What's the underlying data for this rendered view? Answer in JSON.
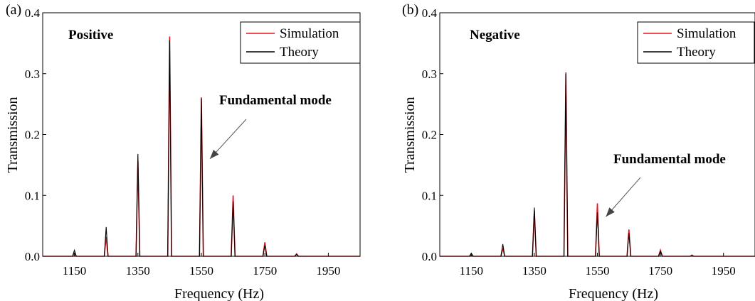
{
  "chart_data": [
    {
      "type": "line",
      "panel_label": "(a)",
      "annotation_title": "Positive",
      "annotation_text": "Fundamental mode",
      "annotation_target": {
        "x": 1550,
        "y": 0.16
      },
      "xlabel": "Frequency (Hz)",
      "ylabel": "Transmission",
      "xlim": [
        1050,
        2050
      ],
      "ylim": [
        0,
        0.4
      ],
      "xticks": [
        1150,
        1350,
        1550,
        1750,
        1950
      ],
      "xtick_labels": [
        "1150",
        "1350",
        "1550",
        "1750",
        "1950"
      ],
      "yticks": [
        0,
        0.1,
        0.2,
        0.3,
        0.4
      ],
      "ytick_labels": [
        "0.0",
        "0.1",
        "0.2",
        "0.3",
        "0.4"
      ],
      "legend": {
        "placement": "top-right",
        "entries": [
          "Simulation",
          "Theory"
        ]
      },
      "peak_halfwidth_hz": 6,
      "series": [
        {
          "name": "Simulation",
          "color": "#e8141b",
          "peaks": [
            {
              "x": 1150,
              "y": 0.005
            },
            {
              "x": 1250,
              "y": 0.032
            },
            {
              "x": 1350,
              "y": 0.157
            },
            {
              "x": 1450,
              "y": 0.361
            },
            {
              "x": 1550,
              "y": 0.261
            },
            {
              "x": 1650,
              "y": 0.1
            },
            {
              "x": 1750,
              "y": 0.023
            },
            {
              "x": 1850,
              "y": 0.004
            }
          ]
        },
        {
          "name": "Theory",
          "color": "#000000",
          "peaks": [
            {
              "x": 1150,
              "y": 0.01
            },
            {
              "x": 1250,
              "y": 0.048
            },
            {
              "x": 1350,
              "y": 0.168
            },
            {
              "x": 1450,
              "y": 0.355
            },
            {
              "x": 1550,
              "y": 0.259
            },
            {
              "x": 1650,
              "y": 0.09
            },
            {
              "x": 1750,
              "y": 0.018
            },
            {
              "x": 1850,
              "y": 0.003
            }
          ]
        }
      ]
    },
    {
      "type": "line",
      "panel_label": "(b)",
      "annotation_title": "Negative",
      "annotation_text": "Fundamental mode",
      "annotation_target": {
        "x": 1550,
        "y": 0.065
      },
      "xlabel": "Frequency (Hz)",
      "ylabel": "Transmission",
      "xlim": [
        1050,
        2050
      ],
      "ylim": [
        0,
        0.4
      ],
      "xticks": [
        1150,
        1350,
        1550,
        1750,
        1950
      ],
      "xtick_labels": [
        "1150",
        "1350",
        "1550",
        "1750",
        "1950"
      ],
      "yticks": [
        0,
        0.1,
        0.2,
        0.3,
        0.4
      ],
      "ytick_labels": [
        "0.0",
        "0.1",
        "0.2",
        "0.3",
        "0.4"
      ],
      "legend": {
        "placement": "top-right",
        "entries": [
          "Simulation",
          "Theory"
        ]
      },
      "peak_halfwidth_hz": 6,
      "series": [
        {
          "name": "Simulation",
          "color": "#e8141b",
          "peaks": [
            {
              "x": 1150,
              "y": 0.003
            },
            {
              "x": 1250,
              "y": 0.013
            },
            {
              "x": 1350,
              "y": 0.075
            },
            {
              "x": 1450,
              "y": 0.3
            },
            {
              "x": 1550,
              "y": 0.087
            },
            {
              "x": 1650,
              "y": 0.044
            },
            {
              "x": 1750,
              "y": 0.01
            },
            {
              "x": 1850,
              "y": 0.002
            }
          ]
        },
        {
          "name": "Theory",
          "color": "#000000",
          "peaks": [
            {
              "x": 1150,
              "y": 0.005
            },
            {
              "x": 1250,
              "y": 0.02
            },
            {
              "x": 1350,
              "y": 0.08
            },
            {
              "x": 1450,
              "y": 0.302
            },
            {
              "x": 1550,
              "y": 0.072
            },
            {
              "x": 1650,
              "y": 0.038
            },
            {
              "x": 1750,
              "y": 0.008
            },
            {
              "x": 1850,
              "y": 0.001
            }
          ]
        }
      ]
    }
  ]
}
